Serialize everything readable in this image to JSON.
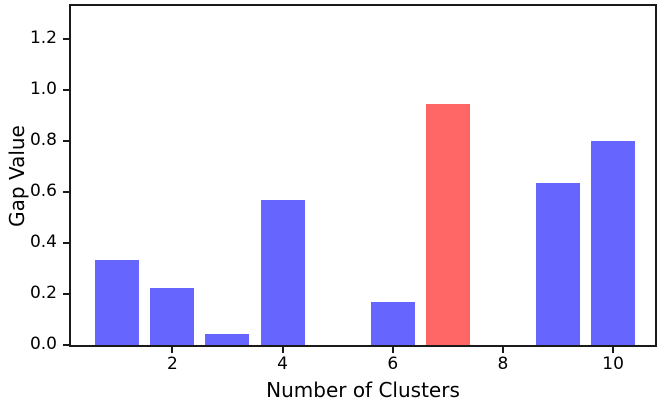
{
  "chart_data": {
    "type": "bar",
    "title": "",
    "xlabel": "Number of Clusters",
    "ylabel": "Gap Value",
    "categories": [
      1,
      2,
      3,
      4,
      5,
      6,
      7,
      8,
      9,
      10
    ],
    "values": [
      0.335,
      0.225,
      0.045,
      0.57,
      0,
      0.17,
      0.945,
      0,
      0.635,
      0.8
    ],
    "highlight_x": 7,
    "colors": {
      "default": "#6666ff",
      "highlight": "#ff6666",
      "axis": "#1a1a1a",
      "text": "#000000"
    },
    "bar_width": 0.8,
    "xlim": [
      0.16,
      10.76
    ],
    "ylim": [
      0,
      1.33
    ],
    "x_ticks": [
      2,
      4,
      6,
      8,
      10
    ],
    "y_ticks": [
      0.0,
      0.2,
      0.4,
      0.6,
      0.8,
      1.0,
      1.2
    ],
    "y_tick_decimals": 1,
    "grid": false,
    "legend": null
  }
}
